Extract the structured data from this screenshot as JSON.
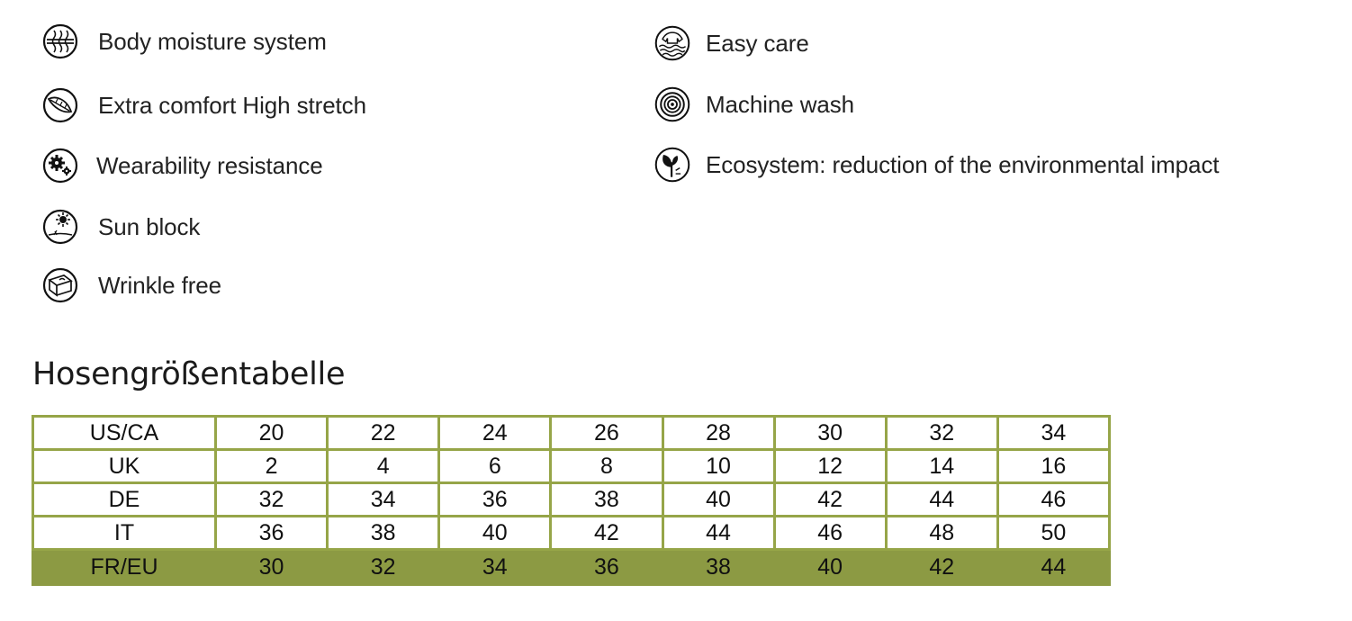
{
  "features": {
    "left": [
      {
        "icon": "body-moisture-icon",
        "label": "Body moisture system"
      },
      {
        "icon": "feather-comfort-icon",
        "label": "Extra comfort High stretch"
      },
      {
        "icon": "gears-icon",
        "label": "Wearability resistance"
      },
      {
        "icon": "sun-block-icon",
        "label": "Sun block"
      },
      {
        "icon": "wrinkle-free-icon",
        "label": "Wrinkle free"
      }
    ],
    "right": [
      {
        "icon": "easy-care-icon",
        "label": "Easy care"
      },
      {
        "icon": "machine-wash-icon",
        "label": "Machine wash"
      },
      {
        "icon": "eco-leaf-icon",
        "label": "Ecosystem: reduction of the environmental impact"
      }
    ]
  },
  "size_table": {
    "title": "Hosengrößentabelle",
    "rows": [
      {
        "region": "US/CA",
        "values": [
          "20",
          "22",
          "24",
          "26",
          "28",
          "30",
          "32",
          "34"
        ]
      },
      {
        "region": "UK",
        "values": [
          "2",
          "4",
          "6",
          "8",
          "10",
          "12",
          "14",
          "16"
        ]
      },
      {
        "region": "DE",
        "values": [
          "32",
          "34",
          "36",
          "38",
          "40",
          "42",
          "44",
          "46"
        ]
      },
      {
        "region": "IT",
        "values": [
          "36",
          "38",
          "40",
          "42",
          "44",
          "46",
          "48",
          "50"
        ]
      },
      {
        "region": "FR/EU",
        "values": [
          "30",
          "32",
          "34",
          "36",
          "38",
          "40",
          "42",
          "44"
        ],
        "highlighted": true
      }
    ],
    "colors": {
      "border": "#96a548",
      "highlight": "#8c9a43"
    }
  }
}
